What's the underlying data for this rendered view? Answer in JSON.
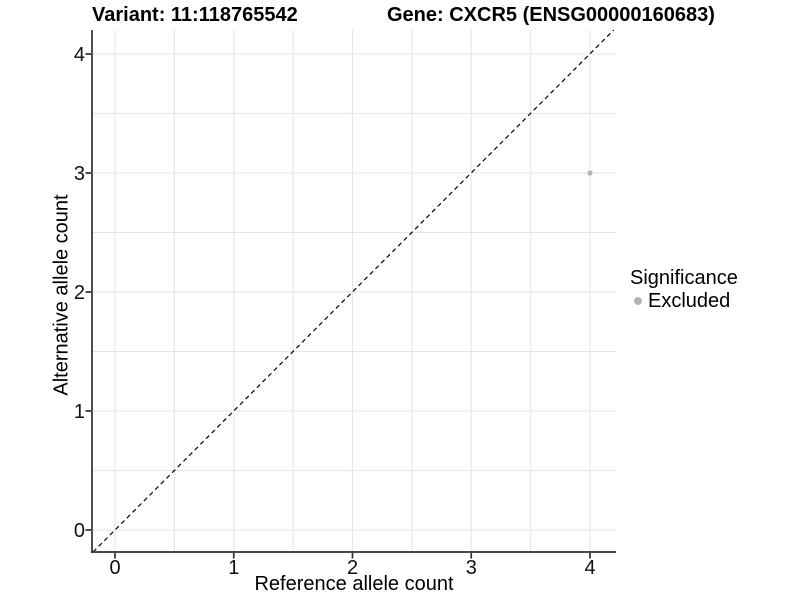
{
  "chart_data": {
    "type": "scatter",
    "title_left": "Variant: 11:118765542",
    "title_right": "Gene: CXCR5 (ENSG00000160683)",
    "xlabel": "Reference allele count",
    "ylabel": "Alternative allele count",
    "xlim": [
      -0.2,
      4.2
    ],
    "ylim": [
      -0.2,
      4.2
    ],
    "x_ticks": [
      0,
      1,
      2,
      3,
      4
    ],
    "y_ticks": [
      0,
      1,
      2,
      3,
      4
    ],
    "grid": {
      "on": true,
      "minor_every": 0.5,
      "color": "#e6e6e6"
    },
    "reference_line": {
      "kind": "identity y=x",
      "style": "dashed",
      "color": "#000000"
    },
    "legend": {
      "title": "Significance",
      "position": "right",
      "items": [
        {
          "label": "Excluded",
          "color": "#b5b5b5"
        }
      ]
    },
    "series": [
      {
        "name": "Excluded",
        "color": "#b5b5b5",
        "points": [
          [
            4,
            3
          ]
        ]
      }
    ]
  },
  "colors": {
    "axis_line": "#303030",
    "grid_line": "#e6e6e6",
    "tick_text": "#111111",
    "point_excluded": "#b5b5b5"
  }
}
